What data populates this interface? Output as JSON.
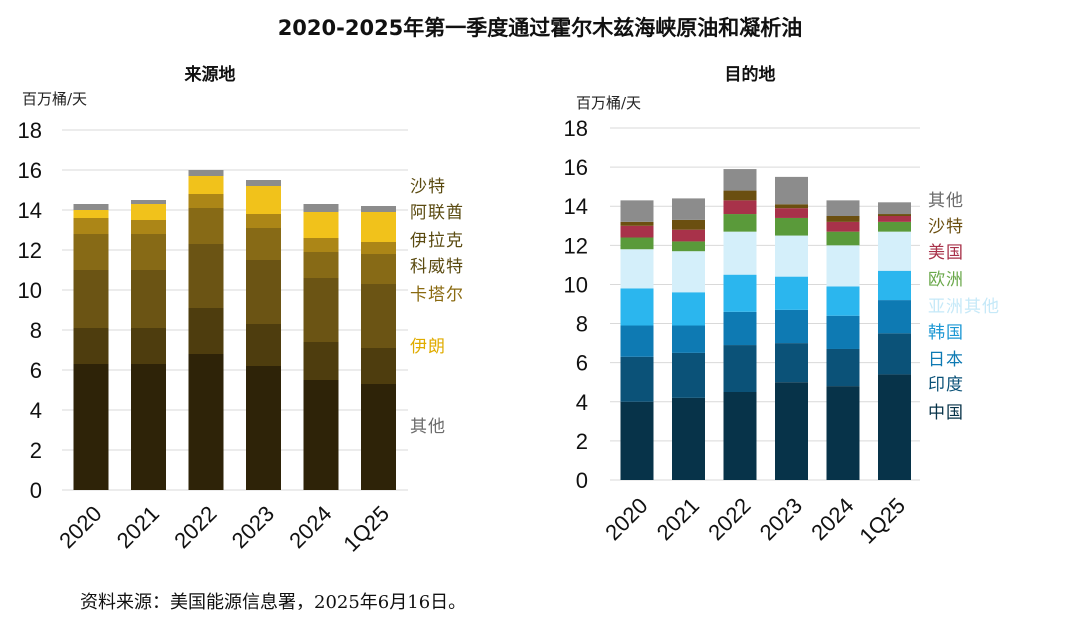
{
  "title": "2020-2025年第一季度通过霍尔木兹海峡原油和凝析油",
  "source": "资料来源：美国能源信息署，2025年6月16日。",
  "chart_data": [
    {
      "type": "bar",
      "stacked": true,
      "subtitle": "来源地",
      "ylabel": "百万桶/天",
      "ylim": [
        0,
        18
      ],
      "yticks": [
        0,
        2,
        4,
        6,
        8,
        10,
        12,
        14,
        16,
        18
      ],
      "grid": true,
      "categories": [
        "2020",
        "2021",
        "2022",
        "2023",
        "2024",
        "1Q25"
      ],
      "series": [
        {
          "name": "沙特",
          "color": "#2e2308",
          "label_color": "#5a4a10",
          "values": [
            6.3,
            6.3,
            6.8,
            6.2,
            5.5,
            5.3
          ]
        },
        {
          "name": "阿联酋",
          "color": "#4e3d0e",
          "label_color": "#5a4a10",
          "values": [
            1.8,
            1.8,
            2.3,
            2.1,
            1.9,
            1.8
          ]
        },
        {
          "name": "伊拉克",
          "color": "#6b5414",
          "label_color": "#5a4a10",
          "values": [
            2.9,
            2.9,
            3.2,
            3.2,
            3.2,
            3.2
          ]
        },
        {
          "name": "科威特",
          "color": "#876a16",
          "label_color": "#5a4a10",
          "values": [
            1.8,
            1.8,
            1.8,
            1.6,
            1.3,
            1.5
          ]
        },
        {
          "name": "卡塔尔",
          "color": "#ac8617",
          "label_color": "#8a6a10",
          "values": [
            0.8,
            0.7,
            0.7,
            0.7,
            0.7,
            0.6
          ]
        },
        {
          "name": "伊朗",
          "color": "#f1c21b",
          "label_color": "#e0ac00",
          "values": [
            0.4,
            0.8,
            0.9,
            1.4,
            1.3,
            1.5
          ]
        },
        {
          "name": "其他",
          "color": "#8c8c8c",
          "label_color": "#6b6b6b",
          "values": [
            0.3,
            0.2,
            0.3,
            0.3,
            0.4,
            0.3
          ]
        }
      ]
    },
    {
      "type": "bar",
      "stacked": true,
      "subtitle": "目的地",
      "ylabel": "百万桶/天",
      "ylim": [
        0,
        18
      ],
      "yticks": [
        0,
        2,
        4,
        6,
        8,
        10,
        12,
        14,
        16,
        18
      ],
      "grid": true,
      "categories": [
        "2020",
        "2021",
        "2022",
        "2023",
        "2024",
        "1Q25"
      ],
      "series": [
        {
          "name": "中国",
          "color": "#073349",
          "label_color": "#073349",
          "values": [
            4.0,
            4.2,
            4.5,
            5.0,
            4.8,
            5.4
          ]
        },
        {
          "name": "印度",
          "color": "#0b5278",
          "label_color": "#0b5278",
          "values": [
            2.3,
            2.3,
            2.4,
            2.0,
            1.9,
            2.1
          ]
        },
        {
          "name": "日本",
          "color": "#0e7ab3",
          "label_color": "#0e7ab3",
          "values": [
            1.6,
            1.4,
            1.7,
            1.7,
            1.7,
            1.7
          ]
        },
        {
          "name": "韩国",
          "color": "#2bb6ee",
          "label_color": "#1c98d4",
          "values": [
            1.9,
            1.7,
            1.9,
            1.7,
            1.5,
            1.5
          ]
        },
        {
          "name": "亚洲其他",
          "color": "#d4effa",
          "label_color": "#c6e9f8",
          "values": [
            2.0,
            2.1,
            2.2,
            2.1,
            2.1,
            2.0
          ]
        },
        {
          "name": "欧洲",
          "color": "#5a9a3a",
          "label_color": "#6aa84a",
          "values": [
            0.6,
            0.5,
            0.9,
            0.9,
            0.7,
            0.5
          ]
        },
        {
          "name": "美国",
          "color": "#a8324a",
          "label_color": "#a8324a",
          "values": [
            0.6,
            0.6,
            0.7,
            0.5,
            0.5,
            0.3
          ]
        },
        {
          "name": "沙特",
          "color": "#6b4f10",
          "label_color": "#6b4f10",
          "values": [
            0.2,
            0.5,
            0.5,
            0.2,
            0.3,
            0.1
          ]
        },
        {
          "name": "其他",
          "color": "#8c8c8c",
          "label_color": "#6b6b6b",
          "values": [
            1.1,
            1.1,
            1.1,
            1.4,
            0.8,
            0.6
          ]
        }
      ]
    }
  ]
}
